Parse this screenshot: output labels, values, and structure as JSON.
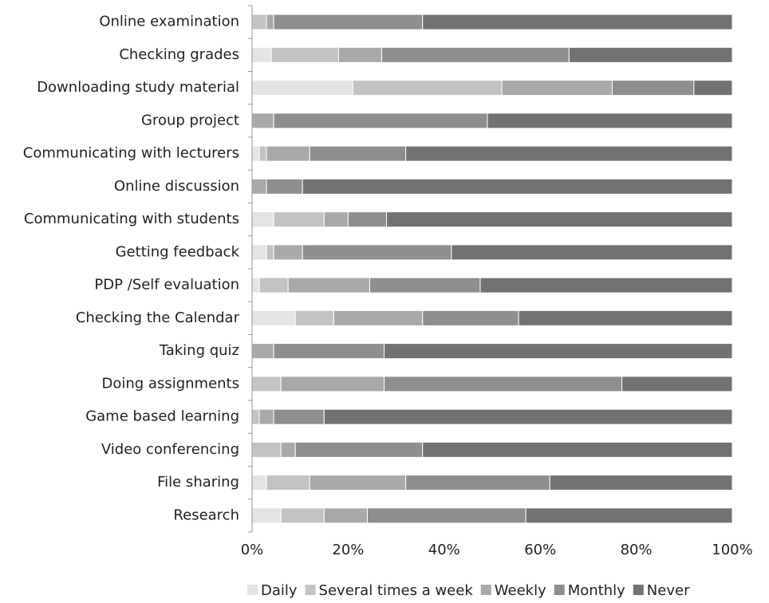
{
  "chart_data": {
    "type": "stacked_barh",
    "categories": [
      "Online examination",
      "Checking grades",
      "Downloading study material",
      "Group project",
      "Communicating with lecturers",
      "Online discussion",
      "Communicating with students",
      "Getting feedback",
      "PDP /Self evaluation",
      "Checking the Calendar",
      "Taking quiz",
      "Doing assignments",
      "Game based learning",
      "Video conferencing",
      "File sharing",
      "Research"
    ],
    "series": [
      {
        "name": "Daily",
        "color": "#e4e4e4",
        "values": [
          0,
          4,
          21,
          0,
          1.5,
          0,
          4.5,
          3,
          1.5,
          9,
          0,
          0,
          0,
          0,
          3,
          6
        ]
      },
      {
        "name": "Several times a week",
        "color": "#c3c3c3",
        "values": [
          3,
          14,
          31,
          0,
          1.5,
          0,
          10.5,
          1.5,
          6,
          8,
          0,
          6,
          1.5,
          6,
          9,
          9
        ]
      },
      {
        "name": "Weekly",
        "color": "#a9a9a9",
        "values": [
          1.5,
          9,
          23,
          4.5,
          9,
          3,
          5,
          6,
          17,
          18.5,
          4.5,
          21.5,
          3,
          3,
          20,
          9
        ]
      },
      {
        "name": "Monthly",
        "color": "#8e8e8e",
        "values": [
          31,
          39,
          17,
          44.5,
          20,
          7.5,
          8,
          31,
          23,
          20,
          23,
          49.5,
          10.5,
          26.5,
          30,
          33
        ]
      },
      {
        "name": "Never",
        "color": "#727272",
        "values": [
          64.5,
          34,
          8,
          51,
          68,
          89.5,
          72,
          58.5,
          52.5,
          44.5,
          72.5,
          23,
          85,
          64.5,
          38,
          43
        ]
      }
    ],
    "xlim": [
      0,
      100
    ],
    "xticks": [
      {
        "value": 0,
        "label": "0%"
      },
      {
        "value": 20,
        "label": "20%"
      },
      {
        "value": 40,
        "label": "40%"
      },
      {
        "value": 60,
        "label": "60%"
      },
      {
        "value": 80,
        "label": "80%"
      },
      {
        "value": 100,
        "label": "100%"
      }
    ],
    "legend": "bottom"
  }
}
